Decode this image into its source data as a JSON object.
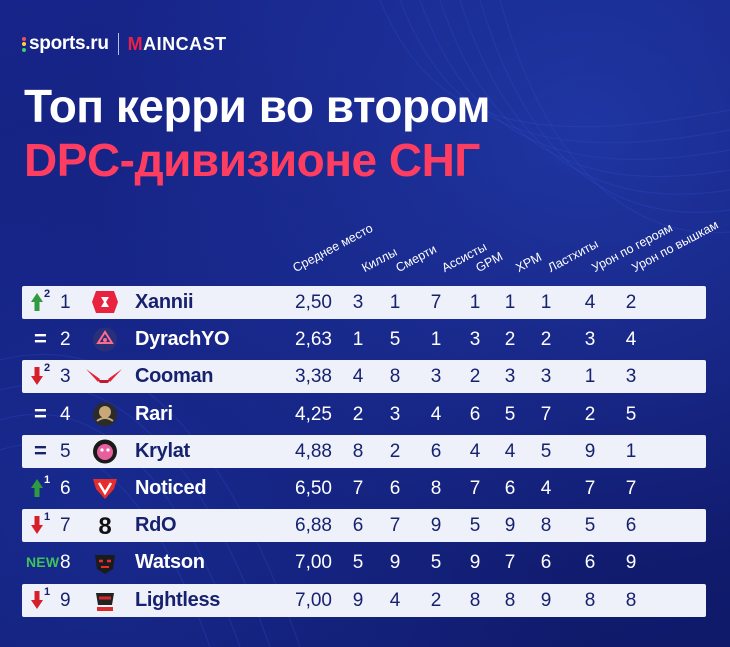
{
  "brand": {
    "sports_logo": "sports.ru",
    "maincast_logo": "MAINCAST",
    "maincast_first_letter": "M",
    "maincast_rest": "AINCAST"
  },
  "title": {
    "line1": "Топ керри во втором",
    "line2": "DPC-дивизионе СНГ"
  },
  "colors": {
    "background": "#14207c",
    "accent_red": "#ff3d61",
    "row_light": "#eef1fa",
    "row_text": "#17226f",
    "up_green": "#2f9a3e",
    "down_red": "#d71f2a",
    "new_green": "#3bc45a"
  },
  "table": {
    "headers": [
      "Среднее место",
      "Киллы",
      "Смерти",
      "Ассисты",
      "GPM",
      "XPM",
      "Ластхиты",
      "Урон по героям",
      "Урон по вышкам"
    ],
    "rows": [
      {
        "trend": "up",
        "change": "2",
        "rank": "1",
        "logo": "gambit-logo",
        "player": "Xannii",
        "avg": "2,50",
        "values": [
          "3",
          "1",
          "7",
          "1",
          "1",
          "1",
          "4",
          "2"
        ]
      },
      {
        "trend": "same",
        "change": "",
        "rank": "2",
        "logo": "hellraisers-logo",
        "player": "DyrachYO",
        "avg": "2,63",
        "values": [
          "1",
          "5",
          "1",
          "3",
          "2",
          "2",
          "3",
          "4"
        ]
      },
      {
        "trend": "down",
        "change": "2",
        "rank": "3",
        "logo": "crimson-swoosh-logo",
        "player": "Cooman",
        "avg": "3,38",
        "values": [
          "4",
          "8",
          "3",
          "2",
          "3",
          "3",
          "1",
          "3"
        ]
      },
      {
        "trend": "same",
        "change": "",
        "rank": "4",
        "logo": "winstrike-logo",
        "player": "Rari",
        "avg": "4,25",
        "values": [
          "2",
          "3",
          "4",
          "6",
          "5",
          "7",
          "2",
          "5"
        ]
      },
      {
        "trend": "same",
        "change": "",
        "rank": "5",
        "logo": "mouse-logo",
        "player": "Krylat",
        "avg": "4,88",
        "values": [
          "8",
          "2",
          "6",
          "4",
          "4",
          "5",
          "9",
          "1"
        ]
      },
      {
        "trend": "up",
        "change": "1",
        "rank": "6",
        "logo": "virtus-pro-logo",
        "player": "Noticed",
        "avg": "6,50",
        "values": [
          "7",
          "6",
          "8",
          "7",
          "6",
          "4",
          "7",
          "7"
        ]
      },
      {
        "trend": "down",
        "change": "1",
        "rank": "7",
        "logo": "b8-logo",
        "player": "RdO",
        "avg": "6,88",
        "values": [
          "6",
          "7",
          "9",
          "5",
          "9",
          "8",
          "5",
          "6"
        ]
      },
      {
        "trend": "new",
        "change": "NEW",
        "rank": "8",
        "logo": "mask-logo",
        "player": "Watson",
        "avg": "7,00",
        "values": [
          "5",
          "9",
          "5",
          "9",
          "7",
          "6",
          "6",
          "9"
        ]
      },
      {
        "trend": "down",
        "change": "1",
        "rank": "9",
        "logo": "bandits-logo",
        "player": "Lightless",
        "avg": "7,00",
        "values": [
          "9",
          "4",
          "2",
          "8",
          "8",
          "9",
          "8",
          "8"
        ]
      }
    ]
  }
}
